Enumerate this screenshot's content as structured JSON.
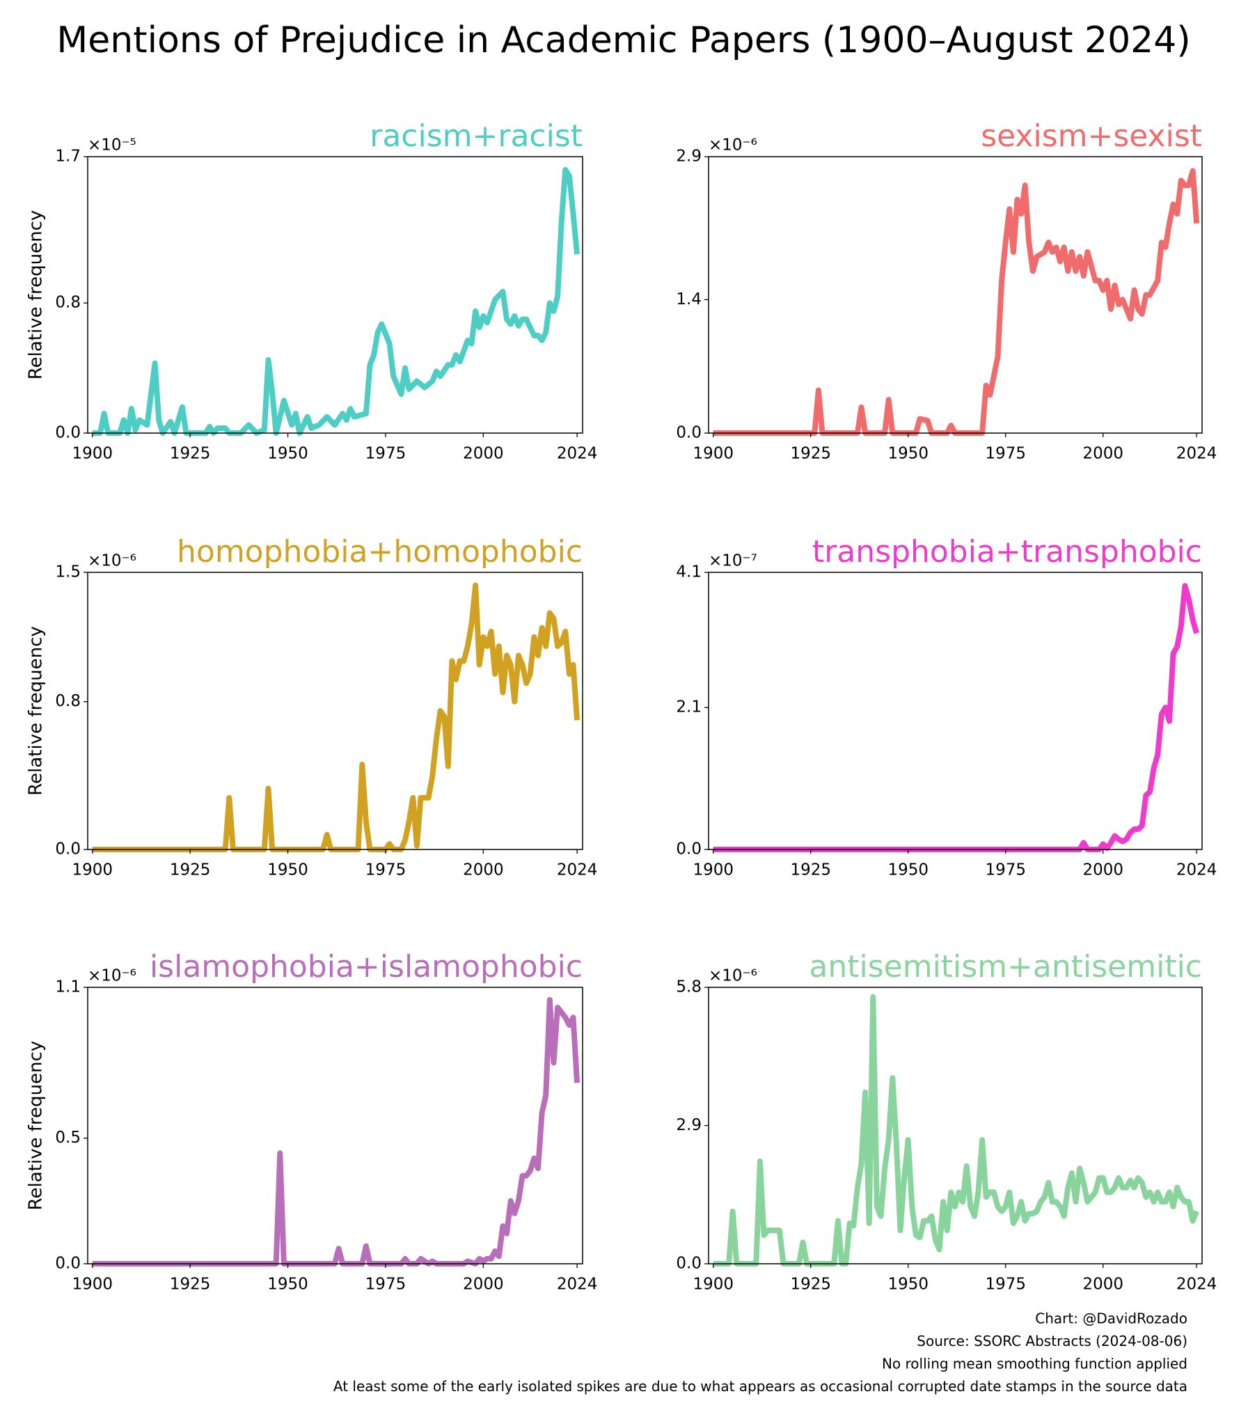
{
  "title": "Mentions of Prejudice in Academic Papers (1900–August 2024)",
  "notes": [
    "Chart: @DavidRozado",
    "Source: SSORC Abstracts (2024-08-06)",
    "No rolling mean smoothing function applied",
    "At least some of the early isolated spikes are due to what appears as occasional corrupted date stamps in the source data"
  ],
  "chart_data": [
    {
      "type": "line",
      "title": "racism+racist",
      "ylabel": "Relative frequency",
      "offset_label": "×10⁻⁵",
      "xlim": [
        1898.8,
        2025.4
      ],
      "xticks": [
        1900,
        1925,
        1950,
        1975,
        2000,
        2024
      ],
      "ylim": [
        0,
        1.7
      ],
      "yticks": [
        {
          "value": 0,
          "label": "0.0"
        },
        0.8,
        1.7
      ],
      "x": [
        1900,
        1902,
        1903,
        1904,
        1907,
        1908,
        1909,
        1910,
        1911,
        1912,
        1914,
        1916,
        1917,
        1918,
        1920,
        1921,
        1923,
        1924,
        1929,
        1930,
        1931,
        1932,
        1934,
        1935,
        1938,
        1940,
        1942,
        1944,
        1945,
        1946,
        1947,
        1949,
        1951,
        1952,
        1953,
        1955,
        1956,
        1958,
        1960,
        1962,
        1964,
        1965,
        1966,
        1967,
        1970,
        1971,
        1972,
        1973,
        1974,
        1976,
        1977,
        1979,
        1980,
        1981,
        1983,
        1985,
        1987,
        1988,
        1989,
        1991,
        1992,
        1993,
        1994,
        1996,
        1997,
        1998,
        1999,
        2000,
        2001,
        2003,
        2005,
        2006,
        2007,
        2008,
        2009,
        2010,
        2011,
        2012,
        2013,
        2014,
        2015,
        2016,
        2017,
        2018,
        2019,
        2020,
        2021,
        2022,
        2023,
        2024
      ],
      "series": [
        {
          "color": "#4ecdc4",
          "values": [
            0,
            0,
            0.12,
            0,
            0,
            0.08,
            0,
            0.15,
            0.02,
            0.08,
            0.05,
            0.43,
            0.08,
            0,
            0.07,
            0,
            0.16,
            0,
            0,
            0.04,
            0,
            0.03,
            0.03,
            0,
            0,
            0.05,
            0,
            0.02,
            0.45,
            0.25,
            0,
            0.2,
            0.05,
            0.12,
            0,
            0.1,
            0.03,
            0.05,
            0.1,
            0.05,
            0.12,
            0.08,
            0.15,
            0.1,
            0.12,
            0.42,
            0.48,
            0.62,
            0.67,
            0.55,
            0.35,
            0.24,
            0.4,
            0.27,
            0.32,
            0.28,
            0.32,
            0.38,
            0.35,
            0.42,
            0.42,
            0.48,
            0.44,
            0.57,
            0.55,
            0.75,
            0.65,
            0.72,
            0.68,
            0.82,
            0.87,
            0.7,
            0.67,
            0.72,
            0.66,
            0.7,
            0.7,
            0.65,
            0.6,
            0.6,
            0.57,
            0.62,
            0.8,
            0.75,
            0.84,
            1.3,
            1.62,
            1.58,
            1.35,
            1.1
          ]
        }
      ]
    },
    {
      "type": "line",
      "title": "sexism+sexist",
      "offset_label": "×10⁻⁶",
      "xlim": [
        1898.8,
        2025.4
      ],
      "xticks": [
        1900,
        1925,
        1950,
        1975,
        2000,
        2024
      ],
      "ylim": [
        0,
        2.9
      ],
      "yticks": [
        {
          "value": 0,
          "label": "0.0"
        },
        1.4,
        2.9
      ],
      "x": [
        1900,
        1926,
        1927,
        1928,
        1937,
        1938,
        1939,
        1944,
        1945,
        1946,
        1952,
        1953,
        1955,
        1956,
        1960,
        1961,
        1962,
        1969,
        1970,
        1971,
        1973,
        1974,
        1975,
        1976,
        1977,
        1978,
        1979,
        1980,
        1981,
        1982,
        1983,
        1985,
        1986,
        1987,
        1988,
        1989,
        1990,
        1991,
        1992,
        1993,
        1994,
        1995,
        1996,
        1998,
        1999,
        2000,
        2001,
        2002,
        2003,
        2004,
        2005,
        2006,
        2007,
        2008,
        2009,
        2010,
        2011,
        2012,
        2014,
        2015,
        2016,
        2017,
        2018,
        2019,
        2020,
        2021,
        2022,
        2023,
        2024
      ],
      "series": [
        {
          "color": "#f06b6b",
          "values": [
            0,
            0,
            0.45,
            0,
            0,
            0.27,
            0,
            0,
            0.35,
            0,
            0,
            0.15,
            0.13,
            0,
            0,
            0.08,
            0,
            0,
            0.5,
            0.4,
            0.8,
            1.6,
            2.0,
            2.35,
            1.9,
            2.45,
            2.3,
            2.6,
            2.0,
            1.7,
            1.85,
            1.9,
            2.0,
            1.9,
            1.95,
            1.8,
            1.95,
            1.7,
            1.9,
            1.7,
            1.85,
            1.65,
            1.9,
            1.6,
            1.6,
            1.5,
            1.6,
            1.3,
            1.55,
            1.35,
            1.4,
            1.3,
            1.2,
            1.5,
            1.3,
            1.25,
            1.45,
            1.45,
            1.6,
            2.0,
            1.95,
            2.2,
            2.4,
            2.3,
            2.65,
            2.6,
            2.6,
            2.75,
            2.2
          ]
        }
      ]
    },
    {
      "type": "line",
      "title": "homophobia+homophobic",
      "ylabel": "Relative frequency",
      "offset_label": "×10⁻⁶",
      "xlim": [
        1898.8,
        2025.4
      ],
      "xticks": [
        1900,
        1925,
        1950,
        1975,
        2000,
        2024
      ],
      "ylim": [
        0,
        1.5
      ],
      "yticks": [
        {
          "value": 0,
          "label": "0.0"
        },
        0.8,
        1.5
      ],
      "x": [
        1900,
        1934,
        1935,
        1936,
        1944,
        1945,
        1946,
        1959,
        1960,
        1961,
        1968,
        1969,
        1970,
        1971,
        1975,
        1976,
        1977,
        1979,
        1980,
        1981,
        1982,
        1983,
        1984,
        1986,
        1987,
        1988,
        1989,
        1990,
        1991,
        1992,
        1993,
        1994,
        1995,
        1996,
        1997,
        1998,
        1999,
        2000,
        2001,
        2002,
        2003,
        2004,
        2005,
        2006,
        2007,
        2008,
        2009,
        2010,
        2011,
        2012,
        2013,
        2014,
        2015,
        2016,
        2017,
        2018,
        2019,
        2020,
        2021,
        2022,
        2023,
        2024
      ],
      "series": [
        {
          "color": "#d1a121",
          "values": [
            0,
            0,
            0.28,
            0,
            0,
            0.33,
            0,
            0,
            0.08,
            0,
            0,
            0.46,
            0.15,
            0,
            0,
            0.03,
            0,
            0,
            0.05,
            0.15,
            0.28,
            0.02,
            0.28,
            0.28,
            0.4,
            0.6,
            0.75,
            0.72,
            0.45,
            1.02,
            0.92,
            1.02,
            1.02,
            1.1,
            1.22,
            1.43,
            1.0,
            1.15,
            1.1,
            1.18,
            0.95,
            1.1,
            0.85,
            1.05,
            1.0,
            0.8,
            1.05,
            1.0,
            0.9,
            0.95,
            1.15,
            1.05,
            1.2,
            1.1,
            1.28,
            1.25,
            1.1,
            1.12,
            1.18,
            0.95,
            1.0,
            0.7
          ]
        }
      ]
    },
    {
      "type": "line",
      "title": "transphobia+transphobic",
      "offset_label": "×10⁻⁷",
      "xlim": [
        1898.8,
        2025.4
      ],
      "xticks": [
        1900,
        1925,
        1950,
        1975,
        2000,
        2024
      ],
      "ylim": [
        0,
        4.1
      ],
      "yticks": [
        {
          "value": 0,
          "label": "0.0"
        },
        2.1,
        4.1
      ],
      "x": [
        1900,
        1994,
        1995,
        1996,
        1999,
        2000,
        2001,
        2002,
        2003,
        2004,
        2005,
        2006,
        2007,
        2008,
        2009,
        2010,
        2011,
        2012,
        2013,
        2014,
        2015,
        2016,
        2017,
        2018,
        2019,
        2020,
        2021,
        2022,
        2023,
        2024
      ],
      "series": [
        {
          "color": "#ef3bcc",
          "values": [
            0,
            0,
            0.1,
            0,
            0,
            0.08,
            0.02,
            0.1,
            0.2,
            0.15,
            0.12,
            0.15,
            0.25,
            0.3,
            0.3,
            0.35,
            0.8,
            0.85,
            1.2,
            1.4,
            2.0,
            2.1,
            1.9,
            2.9,
            3.0,
            3.3,
            3.9,
            3.7,
            3.4,
            3.2
          ]
        }
      ]
    },
    {
      "type": "line",
      "title": "islamophobia+islamophobic",
      "ylabel": "Relative frequency",
      "offset_label": "×10⁻⁶",
      "xlim": [
        1898.8,
        2025.4
      ],
      "xticks": [
        1900,
        1925,
        1950,
        1975,
        2000,
        2024
      ],
      "ylim": [
        0,
        1.1
      ],
      "yticks": [
        {
          "value": 0,
          "label": "0.0"
        },
        0.5,
        1.1
      ],
      "x": [
        1900,
        1947,
        1948,
        1949,
        1962,
        1963,
        1964,
        1969,
        1970,
        1971,
        1979,
        1980,
        1981,
        1983,
        1984,
        1986,
        1987,
        1988,
        1995,
        1996,
        1998,
        1999,
        2000,
        2001,
        2002,
        2003,
        2004,
        2005,
        2006,
        2007,
        2008,
        2009,
        2010,
        2011,
        2012,
        2013,
        2014,
        2015,
        2016,
        2017,
        2018,
        2019,
        2020,
        2021,
        2022,
        2023,
        2024
      ],
      "series": [
        {
          "color": "#b96eb9",
          "values": [
            0,
            0,
            0.44,
            0,
            0,
            0.06,
            0,
            0,
            0.07,
            0,
            0,
            0.02,
            0,
            0,
            0.02,
            0,
            0.01,
            0,
            0,
            0.01,
            0,
            0.02,
            0.01,
            0.02,
            0.02,
            0.05,
            0.03,
            0.15,
            0.12,
            0.25,
            0.2,
            0.25,
            0.35,
            0.35,
            0.37,
            0.42,
            0.38,
            0.6,
            0.67,
            1.05,
            0.8,
            1.02,
            1.0,
            0.98,
            0.95,
            0.98,
            0.72
          ]
        }
      ]
    },
    {
      "type": "line",
      "title": "antisemitism+antisemitic",
      "offset_label": "×10⁻⁶",
      "xlim": [
        1898.8,
        2025.4
      ],
      "xticks": [
        1900,
        1925,
        1950,
        1975,
        2000,
        2024
      ],
      "ylim": [
        0,
        5.8
      ],
      "yticks": [
        {
          "value": 0,
          "label": "0.0"
        },
        2.9,
        5.8
      ],
      "x": [
        1900,
        1904,
        1905,
        1906,
        1911,
        1912,
        1913,
        1914,
        1917,
        1918,
        1922,
        1923,
        1924,
        1931,
        1932,
        1933,
        1934,
        1935,
        1936,
        1937,
        1938,
        1939,
        1940,
        1941,
        1942,
        1943,
        1944,
        1945,
        1946,
        1947,
        1948,
        1949,
        1950,
        1951,
        1952,
        1953,
        1954,
        1955,
        1956,
        1957,
        1958,
        1959,
        1960,
        1961,
        1962,
        1963,
        1964,
        1965,
        1966,
        1967,
        1968,
        1969,
        1970,
        1971,
        1972,
        1973,
        1974,
        1975,
        1976,
        1977,
        1978,
        1979,
        1980,
        1981,
        1982,
        1983,
        1984,
        1985,
        1986,
        1987,
        1988,
        1989,
        1990,
        1991,
        1992,
        1993,
        1994,
        1995,
        1996,
        1997,
        1998,
        1999,
        2000,
        2001,
        2002,
        2003,
        2004,
        2005,
        2006,
        2007,
        2008,
        2009,
        2010,
        2011,
        2012,
        2013,
        2014,
        2015,
        2016,
        2017,
        2018,
        2019,
        2020,
        2021,
        2022,
        2023,
        2024
      ],
      "series": [
        {
          "color": "#88d49c",
          "values": [
            0,
            0,
            1.1,
            0,
            0,
            2.15,
            0.6,
            0.7,
            0.7,
            0,
            0,
            0.45,
            0,
            0,
            0.9,
            0,
            0,
            0.85,
            0.8,
            1.6,
            2.1,
            3.6,
            0.85,
            5.6,
            1.2,
            1.0,
            2.0,
            2.6,
            3.9,
            2.5,
            0.7,
            1.8,
            2.6,
            1.2,
            0.6,
            0.55,
            0.9,
            0.9,
            1.0,
            0.5,
            0.3,
            1.3,
            0.7,
            1.5,
            1.2,
            1.5,
            1.3,
            2.05,
            1.2,
            1.0,
            1.5,
            2.6,
            1.4,
            1.5,
            1.5,
            1.2,
            1.1,
            1.2,
            1.5,
            0.85,
            1.0,
            1.3,
            0.9,
            1.05,
            1.05,
            1.1,
            1.3,
            1.4,
            1.7,
            1.3,
            1.3,
            1.2,
            1.0,
            1.6,
            1.9,
            1.3,
            2.0,
            1.7,
            1.3,
            1.4,
            1.5,
            1.8,
            1.8,
            1.5,
            1.5,
            1.6,
            1.8,
            1.6,
            1.6,
            1.75,
            1.6,
            1.8,
            1.7,
            1.4,
            1.5,
            1.3,
            1.5,
            1.3,
            1.3,
            1.5,
            1.2,
            1.6,
            1.4,
            1.3,
            1.3,
            0.9,
            1.1
          ]
        }
      ]
    }
  ]
}
